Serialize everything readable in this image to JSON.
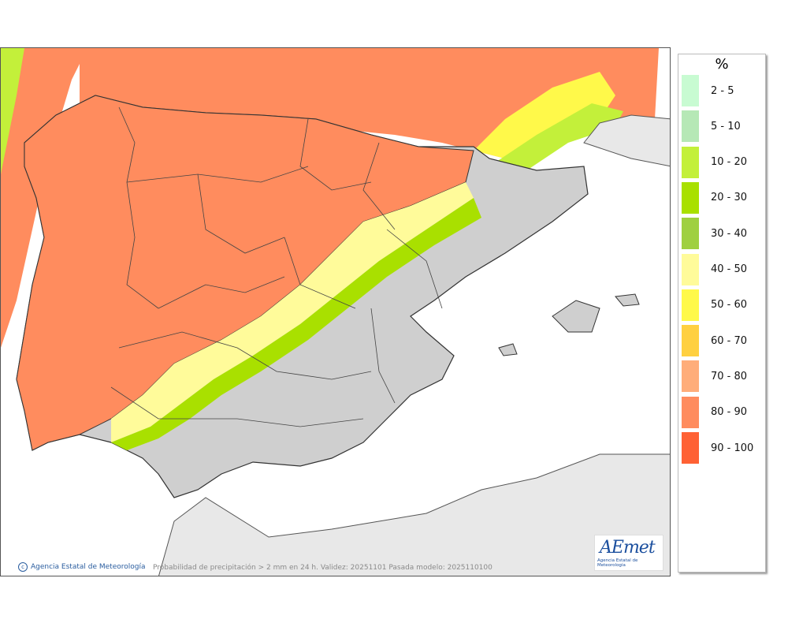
{
  "legend": {
    "title": "%",
    "items": [
      {
        "label": "2 - 5",
        "color": "#c8fbd2"
      },
      {
        "label": "5 - 10",
        "color": "#b6e8b6"
      },
      {
        "label": "10 - 20",
        "color": "#c3f03a"
      },
      {
        "label": "20 - 30",
        "color": "#a9e000"
      },
      {
        "label": "30 - 40",
        "color": "#9fd040"
      },
      {
        "label": "40 - 50",
        "color": "#fffb9a"
      },
      {
        "label": "50 - 60",
        "color": "#fff94a"
      },
      {
        "label": "60 - 70",
        "color": "#ffd040"
      },
      {
        "label": "70 - 80",
        "color": "#ffad7a"
      },
      {
        "label": "80 - 90",
        "color": "#ff8c5e"
      },
      {
        "label": "90 - 100",
        "color": "#ff6134"
      }
    ]
  },
  "footer": {
    "copyright": "Agencia Estatal de Meteorología",
    "caption": "Probabilidad de precipitación > 2 mm en 24 h. Validez: 20251101 Pasada modelo: 2025110100"
  },
  "logo": {
    "text": "AEmet",
    "subtitle": "Agencia Estatal de Meteorología"
  },
  "colors": {
    "land_dry": "#cfcfcf",
    "sea_no_precip": "#ffffff",
    "border": "#333333"
  }
}
